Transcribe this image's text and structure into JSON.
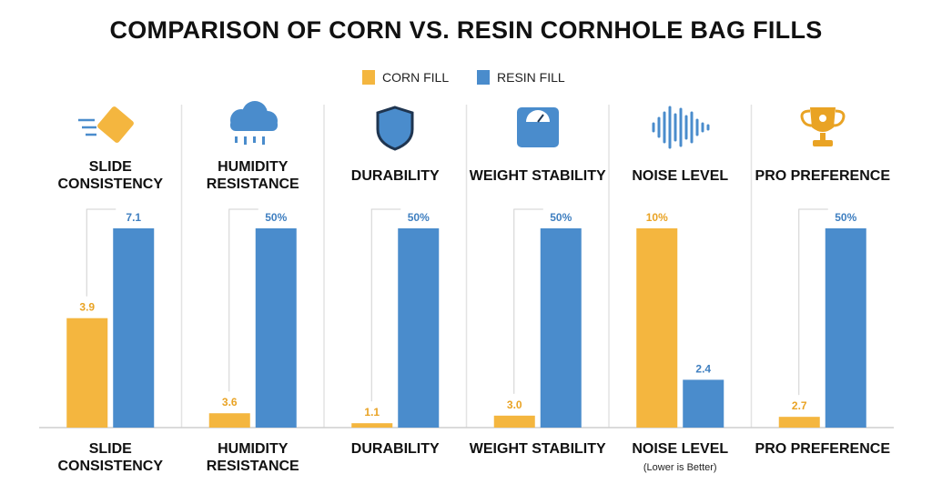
{
  "chart_data": {
    "type": "bar",
    "title": "COMPARISON OF CORN VS. RESIN CORNHOLE BAG FILLS",
    "headings": [
      "SLIDE CONSISTENCY",
      "HUMIDITY RESISTANCE",
      "DURABILITY",
      "WEIGHT STABILITY",
      "NOISE LEVEL",
      "PRO PREFERENCE"
    ],
    "categories": [
      "SLIDE CONSISTENCY",
      "HUMIDITY RESISTANCE",
      "DURABILITY",
      "WEIGHT STABILITY",
      "NOISE LEVEL",
      "PRO PREFERENCE"
    ],
    "category_notes": [
      null,
      null,
      null,
      null,
      "(Lower is Better)",
      null
    ],
    "series": [
      {
        "name": "CORN FILL",
        "color": "#f4b63f",
        "values": [
          3.9,
          3.6,
          1.1,
          3.0,
          10,
          2.7
        ],
        "value_labels": [
          "3.9",
          "3.6",
          "1.1",
          "3.0",
          "10%",
          "2.7"
        ]
      },
      {
        "name": "RESIN FILL",
        "color": "#4a8ccc",
        "values": [
          7.1,
          50,
          50,
          50,
          2.4,
          50
        ],
        "value_labels": [
          "7.1",
          "50%",
          "50%",
          "50%",
          "2.4",
          "50%"
        ]
      }
    ]
  }
}
